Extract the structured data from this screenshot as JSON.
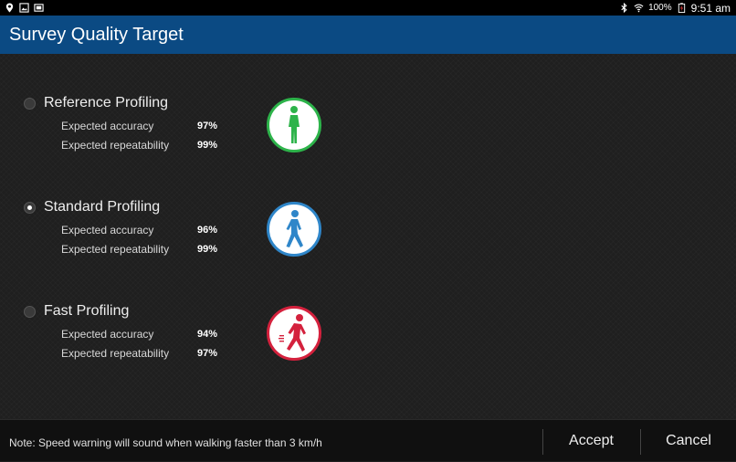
{
  "status_bar": {
    "battery_percent": "100%",
    "time": "9:51 am"
  },
  "header": {
    "title": "Survey Quality Target"
  },
  "options": [
    {
      "title": "Reference Profiling",
      "selected": false,
      "accuracy_label": "Expected accuracy",
      "accuracy_value": "97%",
      "repeatability_label": "Expected repeatability",
      "repeatability_value": "99%",
      "icon": "walking-slow-icon",
      "color": "#2db34a"
    },
    {
      "title": "Standard Profiling",
      "selected": true,
      "accuracy_label": "Expected accuracy",
      "accuracy_value": "96%",
      "repeatability_label": "Expected repeatability",
      "repeatability_value": "99%",
      "icon": "walking-icon",
      "color": "#2f86c9"
    },
    {
      "title": "Fast Profiling",
      "selected": false,
      "accuracy_label": "Expected accuracy",
      "accuracy_value": "94%",
      "repeatability_label": "Expected repeatability",
      "repeatability_value": "97%",
      "icon": "walking-fast-icon",
      "color": "#d4213d"
    }
  ],
  "footer": {
    "note": "Note: Speed warning will sound when walking faster than 3 km/h",
    "accept_label": "Accept",
    "cancel_label": "Cancel"
  }
}
